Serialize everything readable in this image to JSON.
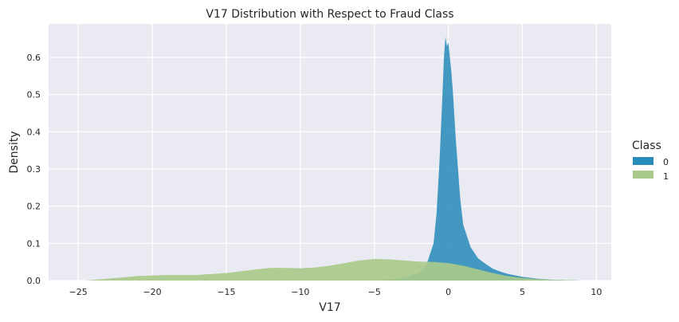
{
  "chart_data": {
    "type": "area",
    "title": "V17 Distribution with Respect to Fraud Class",
    "xlabel": "V17",
    "ylabel": "Density",
    "xlim": [
      -27,
      11
    ],
    "ylim": [
      0,
      0.69
    ],
    "x_ticks": [
      -25,
      -20,
      -15,
      -10,
      -5,
      0,
      5,
      10
    ],
    "x_tick_labels": [
      "−25",
      "−20",
      "−15",
      "−10",
      "−5",
      "0",
      "5",
      "10"
    ],
    "y_ticks": [
      0.0,
      0.1,
      0.2,
      0.3,
      0.4,
      0.5,
      0.6
    ],
    "y_tick_labels": [
      "0.0",
      "0.1",
      "0.2",
      "0.3",
      "0.4",
      "0.5",
      "0.6"
    ],
    "grid": true,
    "legend": {
      "title": "Class",
      "placement": "right",
      "entries": [
        "0",
        "1"
      ]
    },
    "colors": {
      "background": "#eaeaf2",
      "grid": "#ffffff",
      "class_0": "#2a8cba",
      "class_1": "#a9c98a"
    },
    "series": [
      {
        "name": "0",
        "x": [
          -5,
          -4,
          -3,
          -2,
          -1.5,
          -1,
          -0.8,
          -0.6,
          -0.4,
          -0.3,
          -0.2,
          -0.1,
          0,
          0.1,
          0.2,
          0.3,
          0.5,
          0.8,
          1,
          1.5,
          2,
          2.5,
          3,
          3.5,
          4,
          5,
          6,
          7,
          8,
          9,
          10
        ],
        "y": [
          0.0,
          0.002,
          0.008,
          0.02,
          0.04,
          0.1,
          0.18,
          0.32,
          0.5,
          0.6,
          0.655,
          0.63,
          0.64,
          0.6,
          0.56,
          0.51,
          0.38,
          0.22,
          0.15,
          0.09,
          0.06,
          0.045,
          0.032,
          0.024,
          0.018,
          0.01,
          0.005,
          0.002,
          0.001,
          0.0,
          0.0
        ]
      },
      {
        "name": "1",
        "x": [
          -24.5,
          -23,
          -21,
          -19,
          -17,
          -15,
          -13,
          -12,
          -11,
          -10,
          -9,
          -8,
          -7,
          -6,
          -5,
          -4,
          -3,
          -2,
          -1,
          0,
          1,
          2,
          3,
          4,
          5,
          6,
          7,
          8,
          9
        ],
        "y": [
          0.0,
          0.005,
          0.012,
          0.015,
          0.015,
          0.02,
          0.03,
          0.034,
          0.034,
          0.033,
          0.035,
          0.04,
          0.047,
          0.054,
          0.058,
          0.057,
          0.054,
          0.051,
          0.05,
          0.047,
          0.04,
          0.03,
          0.02,
          0.012,
          0.007,
          0.004,
          0.002,
          0.001,
          0.0
        ]
      }
    ]
  }
}
